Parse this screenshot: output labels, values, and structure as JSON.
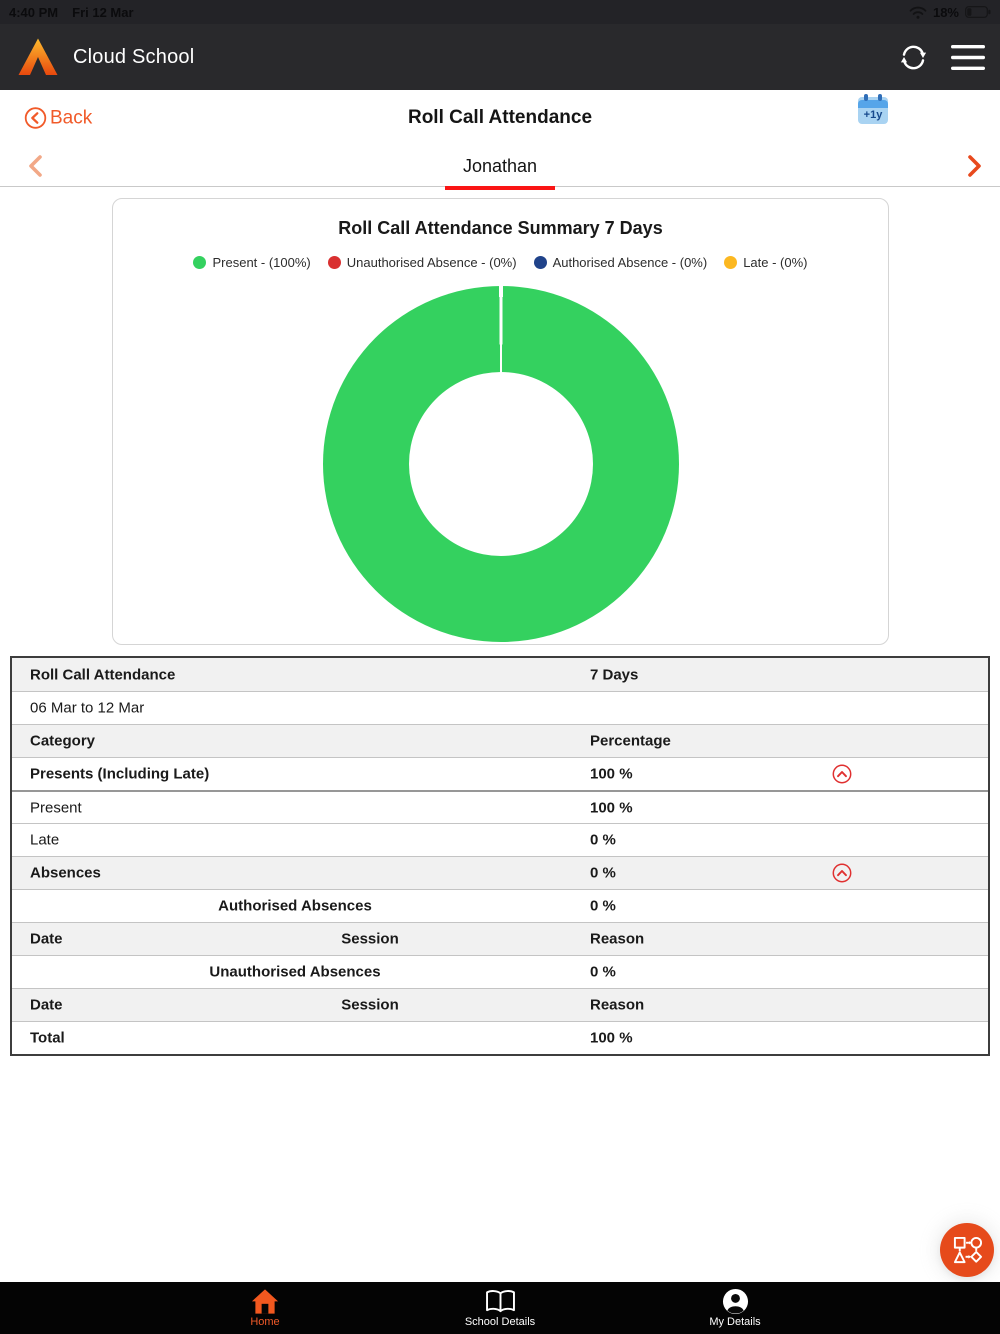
{
  "status_bar": {
    "time": "4:40 PM",
    "date": "Fri 12 Mar",
    "battery": "18%"
  },
  "header": {
    "app_name": "Cloud School"
  },
  "nav": {
    "back_label": "Back",
    "title": "Roll Call Attendance",
    "calendar_badge": "+1y"
  },
  "pager": {
    "student": "Jonathan"
  },
  "chart_data": {
    "type": "pie",
    "donut": true,
    "title": "Roll Call Attendance Summary 7 Days",
    "categories": [
      "Present",
      "Unauthorised Absence",
      "Authorised Absence",
      "Late"
    ],
    "values": [
      100,
      0,
      0,
      0
    ],
    "colors": [
      "#34d15f",
      "#d93030",
      "#20438a",
      "#fcb821"
    ],
    "legend_position": "top",
    "legend": [
      {
        "label": "Present - (100%)",
        "color": "#34d15f"
      },
      {
        "label": "Unauthorised Absence - (0%)",
        "color": "#d93030"
      },
      {
        "label": "Authorised Absence - (0%)",
        "color": "#20438a"
      },
      {
        "label": "Late - (0%)",
        "color": "#fcb821"
      }
    ]
  },
  "table": {
    "rows": [
      {
        "bg": "gray",
        "left": "Roll Call Attendance",
        "left_bold": true,
        "value": "7 Days",
        "value_bold": true
      },
      {
        "bg": "white",
        "left": "06 Mar to 12 Mar",
        "left_bold": false
      },
      {
        "bg": "gray",
        "left": "Category",
        "left_bold": true,
        "value": "Percentage",
        "value_bold": true
      },
      {
        "bg": "white",
        "left": "Presents (Including Late)",
        "left_bold": true,
        "value": "100 %",
        "value_bold": true,
        "expander": true
      },
      {
        "bg": "white",
        "left": "Present",
        "left_bold": false,
        "value": "100 %",
        "value_bold": true,
        "sep_before": true
      },
      {
        "bg": "white",
        "left": "Late",
        "left_bold": false,
        "value": "0 %",
        "value_bold": true
      },
      {
        "bg": "gray",
        "left": "Absences",
        "left_bold": true,
        "value": "0 %",
        "value_bold": true,
        "expander": true
      },
      {
        "bg": "white",
        "center": "Authorised Absences",
        "value": "0 %",
        "value_bold": true
      },
      {
        "bg": "gray",
        "left": "Date",
        "left_bold": true,
        "session": "Session",
        "value": "Reason",
        "value_bold": true
      },
      {
        "bg": "white",
        "center": "Unauthorised Absences",
        "value": "0 %",
        "value_bold": true
      },
      {
        "bg": "gray",
        "left": "Date",
        "left_bold": true,
        "session": "Session",
        "value": "Reason",
        "value_bold": true
      },
      {
        "bg": "white",
        "left": "Total",
        "left_bold": true,
        "value": "100 %",
        "value_bold": true
      }
    ]
  },
  "tab_bar": {
    "items": [
      {
        "label": "Home",
        "icon": "home-icon",
        "active": true
      },
      {
        "label": "School Details",
        "icon": "book-icon",
        "active": false
      },
      {
        "label": "My Details",
        "icon": "person-icon",
        "active": false
      }
    ]
  },
  "colors": {
    "accent_orange": "#f15a29",
    "chevron_orange": "#e8491d",
    "underline_red": "#fa1515",
    "header_bg": "#29292c",
    "tabbar_bg": "#040404",
    "expander_red": "#e03030"
  }
}
